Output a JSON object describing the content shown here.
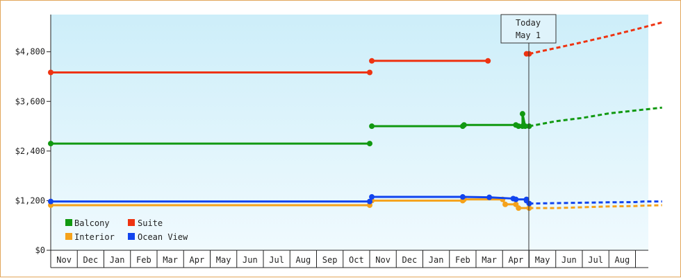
{
  "chart_data": {
    "type": "line",
    "y_ticks": [
      0,
      1200,
      2400,
      3600,
      4800
    ],
    "y_tick_labels": [
      "$0",
      "$1,200",
      "$2,400",
      "$3,600",
      "$4,800"
    ],
    "ylim": [
      0,
      5700
    ],
    "x_months": [
      "Nov",
      "Dec",
      "Jan",
      "Feb",
      "Mar",
      "Apr",
      "May",
      "Jun",
      "Jul",
      "Aug",
      "Sep",
      "Oct",
      "Nov",
      "Dec",
      "Jan",
      "Feb",
      "Mar",
      "Apr",
      "May",
      "Jun",
      "Jul",
      "Aug",
      ""
    ],
    "today_label_line1": "Today",
    "today_label_line2": "May 1",
    "today_index": 18,
    "legend_position": "bottom-left",
    "grid": false,
    "background": "gradient light blue",
    "series": [
      {
        "name": "Balcony",
        "color": "#119911",
        "segments": [
          {
            "points": [
              [
                0,
                2580
              ],
              [
                12,
                2580
              ]
            ]
          },
          {
            "points": [
              [
                12.08,
                3000
              ],
              [
                15.5,
                3000
              ],
              [
                15.55,
                3030
              ],
              [
                17.5,
                3030
              ],
              [
                17.6,
                3000
              ],
              [
                17.75,
                3000
              ],
              [
                17.75,
                3300
              ],
              [
                17.85,
                3000
              ],
              [
                18,
                3000
              ]
            ]
          }
        ],
        "projection": [
          [
            18,
            3000
          ],
          [
            19,
            3120
          ],
          [
            20,
            3200
          ],
          [
            21,
            3310
          ],
          [
            22,
            3380
          ],
          [
            23,
            3450
          ]
        ]
      },
      {
        "name": "Suite",
        "color": "#ee3311",
        "segments": [
          {
            "points": [
              [
                0,
                4300
              ],
              [
                12,
                4300
              ]
            ]
          },
          {
            "points": [
              [
                12.08,
                4580
              ],
              [
                16.45,
                4580
              ]
            ]
          },
          {
            "points": [
              [
                17.9,
                4750
              ],
              [
                18,
                4750
              ]
            ]
          }
        ],
        "projection": [
          [
            18,
            4750
          ],
          [
            19,
            4890
          ],
          [
            20,
            5030
          ],
          [
            21,
            5180
          ],
          [
            22,
            5340
          ],
          [
            23,
            5510
          ]
        ]
      },
      {
        "name": "Interior",
        "color": "#f5a21b",
        "segments": [
          {
            "points": [
              [
                0,
                1090
              ],
              [
                12,
                1090
              ]
            ]
          },
          {
            "points": [
              [
                12.08,
                1200
              ],
              [
                15.5,
                1200
              ],
              [
                15.55,
                1230
              ],
              [
                17,
                1230
              ],
              [
                17.1,
                1110
              ],
              [
                17.5,
                1110
              ],
              [
                17.6,
                1020
              ],
              [
                18,
                1020
              ]
            ]
          }
        ],
        "projection": [
          [
            18,
            1020
          ],
          [
            19,
            1020
          ],
          [
            20,
            1040
          ],
          [
            21,
            1060
          ],
          [
            22,
            1070
          ],
          [
            22.3,
            1080
          ],
          [
            23,
            1090
          ]
        ]
      },
      {
        "name": "Ocean View",
        "color": "#1144ee",
        "segments": [
          {
            "points": [
              [
                0,
                1180
              ],
              [
                12,
                1180
              ]
            ]
          },
          {
            "points": [
              [
                12.08,
                1290
              ],
              [
                15.5,
                1290
              ],
              [
                16.5,
                1280
              ],
              [
                17.4,
                1250
              ],
              [
                17.5,
                1230
              ],
              [
                17.9,
                1230
              ],
              [
                17.9,
                1200
              ],
              [
                18,
                1130
              ]
            ]
          }
        ],
        "projection": [
          [
            18,
            1130
          ],
          [
            19,
            1140
          ],
          [
            20,
            1150
          ],
          [
            21,
            1160
          ],
          [
            22,
            1165
          ],
          [
            22.3,
            1180
          ],
          [
            23,
            1180
          ]
        ]
      }
    ]
  }
}
